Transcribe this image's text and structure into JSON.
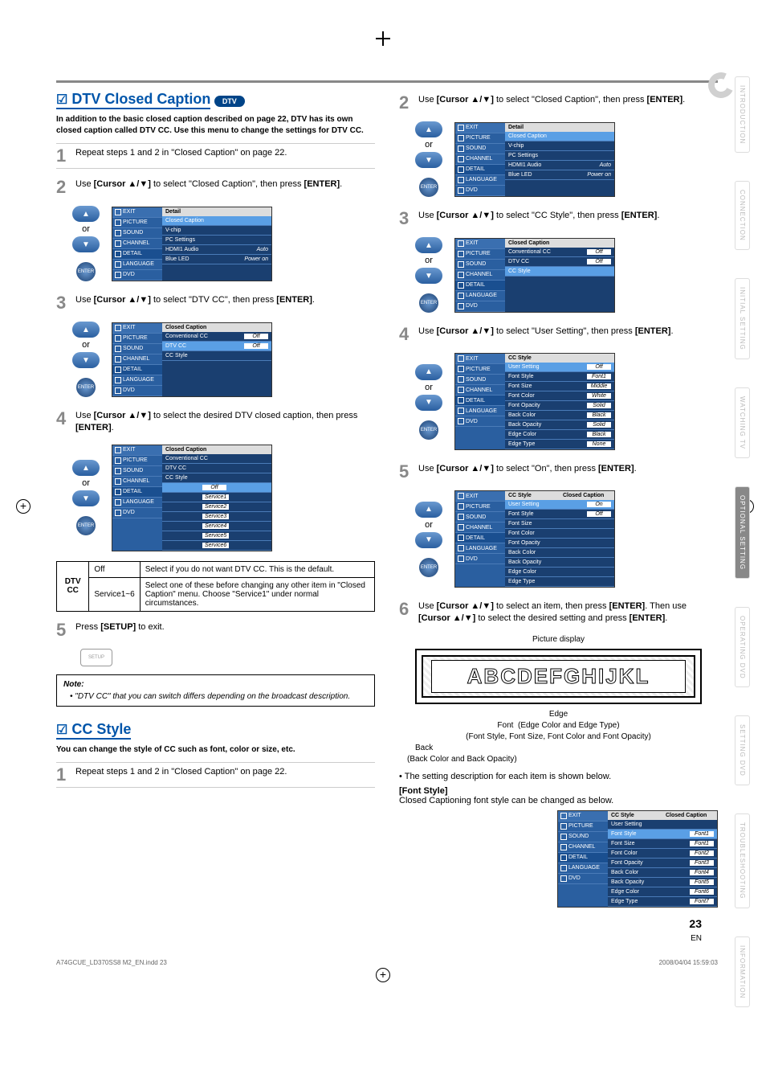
{
  "sideTabs": [
    "INTRODUCTION",
    "CONNECTION",
    "INITIAL SETTING",
    "WATCHING TV",
    "OPTIONAL SETTING",
    "OPERATING DVD",
    "SETTING DVD",
    "TROUBLESHOOTING",
    "INFORMATION"
  ],
  "sideActive": "OPTIONAL SETTING",
  "section1": {
    "title": "DTV Closed Caption",
    "pill": "DTV",
    "intro": "In addition to the basic closed caption described on page 22, DTV has its own closed caption called DTV CC. Use this menu to change the settings for DTV CC.",
    "steps": {
      "s1": "Repeat steps 1 and 2 in \"Closed Caption\" on page 22.",
      "s2a": "Use ",
      "s2b": "[Cursor ▲/▼]",
      "s2c": " to select \"Closed Caption\", then press ",
      "s2d": "[ENTER]",
      "s2e": ".",
      "s3a": "Use ",
      "s3b": "[Cursor ▲/▼]",
      "s3c": " to select \"DTV CC\", then press ",
      "s3d": "[ENTER]",
      "s3e": ".",
      "s4a": "Use ",
      "s4b": "[Cursor ▲/▼]",
      "s4c": " to select the desired DTV closed caption, then press ",
      "s4d": "[ENTER]",
      "s4e": ".",
      "s5a": "Press ",
      "s5b": "[SETUP]",
      "s5c": " to exit."
    },
    "or": "or",
    "enter": "ENTER",
    "setup": "SETUP",
    "menuSide": [
      "EXIT",
      "PICTURE",
      "SOUND",
      "CHANNEL",
      "DETAIL",
      "LANGUAGE",
      "DVD"
    ],
    "detailMenu": {
      "title": "Detail",
      "rows": [
        {
          "l": "Closed Caption",
          "v": "",
          "hl": true
        },
        {
          "l": "V-chip",
          "v": ""
        },
        {
          "l": "PC Settings",
          "v": ""
        },
        {
          "l": "HDMI1 Audio",
          "v": "Auto"
        },
        {
          "l": "Blue LED",
          "v": "Power on"
        }
      ]
    },
    "ccMenu": {
      "title": "Closed Caption",
      "rows": [
        {
          "l": "Conventional CC",
          "v": "Off"
        },
        {
          "l": "DTV CC",
          "v": "Off",
          "hl": true
        },
        {
          "l": "CC Style",
          "v": ""
        }
      ]
    },
    "ccMenu2": {
      "title": "Closed Caption",
      "rows": [
        {
          "l": "Conventional CC",
          "v": ""
        },
        {
          "l": "DTV CC",
          "v": ""
        },
        {
          "l": "CC Style",
          "v": "",
          "r": [
            {
              "l": "",
              "v": "Off",
              "hl": true
            },
            {
              "l": "",
              "v": "Service1"
            },
            {
              "l": "",
              "v": "Service2"
            },
            {
              "l": "",
              "v": "Service3"
            },
            {
              "l": "",
              "v": "Service4"
            },
            {
              "l": "",
              "v": "Service5"
            },
            {
              "l": "",
              "v": "Service6"
            }
          ]
        }
      ]
    },
    "table": {
      "h1": "DTV CC",
      "r1a": "Off",
      "r1b": "Select if you do not want DTV CC. This is the default.",
      "r2a": "Service1~6",
      "r2b": "Select one of these before changing any other item in \"Closed Caption\" menu. Choose \"Service1\" under normal circumstances."
    },
    "noteTitle": "Note:",
    "note1": "\"DTV CC\" that you can switch differs depending on the broadcast description."
  },
  "section2": {
    "title": "CC Style",
    "intro": "You can change the style of CC such as font, color or size, etc.",
    "s1": "Repeat steps 1 and 2 in \"Closed Caption\" on page 22."
  },
  "rightCol": {
    "s2a": "Use ",
    "s2b": "[Cursor ▲/▼]",
    "s2c": " to select \"Closed Caption\", then press ",
    "s2d": "[ENTER]",
    "s2e": ".",
    "s3a": "Use ",
    "s3b": "[Cursor ▲/▼]",
    "s3c": " to select \"CC Style\", then press ",
    "s3d": "[ENTER]",
    "s3e": ".",
    "s4a": "Use ",
    "s4b": "[Cursor ▲/▼]",
    "s4c": " to select \"User Setting\", then press ",
    "s4d": "[ENTER]",
    "s4e": ".",
    "s5a": "Use ",
    "s5b": "[Cursor ▲/▼]",
    "s5c": " to select \"On\", then press ",
    "s5d": "[ENTER]",
    "s5e": ".",
    "s6a": "Use ",
    "s6b": "[Cursor ▲/▼]",
    "s6c": " to select an item, then press ",
    "s6d": "[ENTER]",
    "s6e": ". Then use ",
    "s6f": "[Cursor ▲/▼]",
    "s6g": " to select the desired setting and press ",
    "s6h": "[ENTER]",
    "s6i": ".",
    "ccMenu3": {
      "title": "Closed Caption",
      "rows": [
        {
          "l": "Conventional CC",
          "v": "Off"
        },
        {
          "l": "DTV CC",
          "v": "Off"
        },
        {
          "l": "CC Style",
          "v": "",
          "hl": true
        }
      ]
    },
    "styleMenu": {
      "title": "CC Style",
      "rows": [
        {
          "l": "User Setting",
          "v": "Off",
          "hl": true
        },
        {
          "l": "Font Style",
          "v": "Font1"
        },
        {
          "l": "Font Size",
          "v": "Middle"
        },
        {
          "l": "Font Color",
          "v": "White"
        },
        {
          "l": "Font Opacity",
          "v": "Solid"
        },
        {
          "l": "Back Color",
          "v": "Black"
        },
        {
          "l": "Back Opacity",
          "v": "Solid"
        },
        {
          "l": "Edge Color",
          "v": "Black"
        },
        {
          "l": "Edge Type",
          "v": "None"
        }
      ]
    },
    "styleMenu2": {
      "title": "CC Style",
      "title2": "Closed Caption",
      "rows": [
        {
          "l": "User Setting",
          "v": "On",
          "hl": true
        },
        {
          "l": "Font Style",
          "v": "Off"
        },
        {
          "l": "Font Size",
          "v": ""
        },
        {
          "l": "Font Color",
          "v": ""
        },
        {
          "l": "Font Opacity",
          "v": ""
        },
        {
          "l": "Back Color",
          "v": ""
        },
        {
          "l": "Back Opacity",
          "v": ""
        },
        {
          "l": "Edge Color",
          "v": ""
        },
        {
          "l": "Edge Type",
          "v": ""
        }
      ]
    },
    "fontMenu": {
      "title": "CC Style",
      "title2": "Closed Caption",
      "rows": [
        {
          "l": "User Setting",
          "v": ""
        },
        {
          "l": "Font Style",
          "v": "Font1",
          "hl": true
        },
        {
          "l": "Font Size",
          "v": "Font1"
        },
        {
          "l": "Font Color",
          "v": "Font2"
        },
        {
          "l": "Font Opacity",
          "v": "Font3"
        },
        {
          "l": "Back Color",
          "v": "Font4"
        },
        {
          "l": "Back Opacity",
          "v": "Font5"
        },
        {
          "l": "Edge Color",
          "v": "Font6"
        },
        {
          "l": "Edge Type",
          "v": "Font7"
        }
      ]
    },
    "picLabel": "Picture display",
    "letters": "ABCDEFGHIJKL",
    "edge": "Edge",
    "edgeDesc": "(Edge Color and Edge Type)",
    "font": "Font",
    "fontDesc": "(Font Style, Font Size, Font Color and Font Opacity)",
    "back": "Back",
    "backDesc": "(Back Color and Back Opacity)",
    "bullet": "The setting description for each item is shown below.",
    "fontStyleH": "[Font Style]",
    "fontStyleT": "Closed Captioning font style can be changed as below."
  },
  "pageNum": "23",
  "en": "EN",
  "footL": "A74GCUE_LD370SS8 M2_EN.indd   23",
  "footR": "2008/04/04   15:59:03"
}
